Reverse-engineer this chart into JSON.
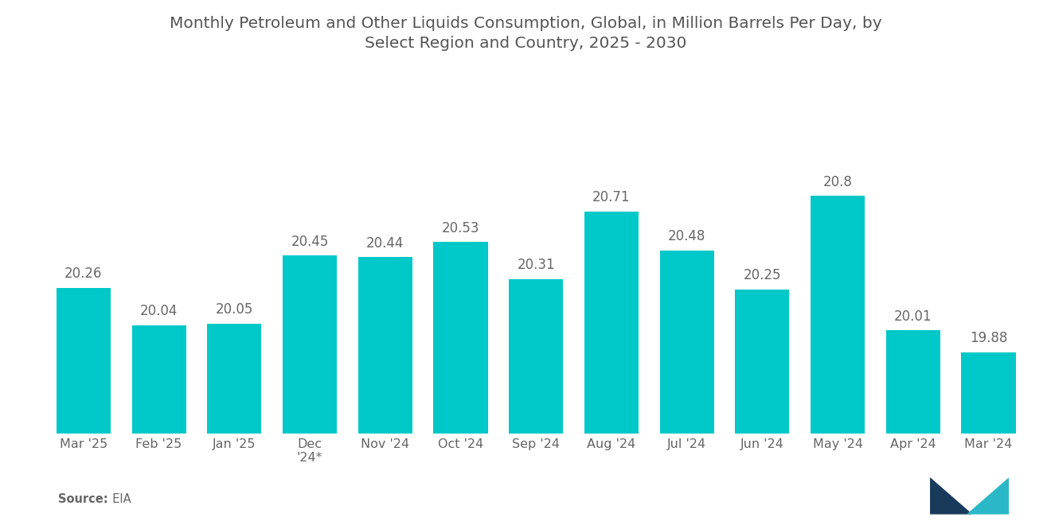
{
  "title_line1": "Monthly Petroleum and Other Liquids Consumption, Global, in Million Barrels Per Day, by",
  "title_line2": "Select Region and Country, 2025 - 2030",
  "categories": [
    "Mar '25",
    "Feb '25",
    "Jan '25",
    "Dec\n'24*",
    "Nov '24",
    "Oct '24",
    "Sep '24",
    "Aug '24",
    "Jul '24",
    "Jun '24",
    "May '24",
    "Apr '24",
    "Mar '24"
  ],
  "values": [
    20.26,
    20.04,
    20.05,
    20.45,
    20.44,
    20.53,
    20.31,
    20.71,
    20.48,
    20.25,
    20.8,
    20.01,
    19.88
  ],
  "bar_color": "#00C8C8",
  "background_color": "#ffffff",
  "title_color": "#555555",
  "label_color": "#666666",
  "tick_color": "#666666",
  "source_label": "Source:",
  "source_value": "  EIA",
  "ymin": 19.4,
  "ymax": 21.3,
  "title_fontsize": 14.5,
  "label_fontsize": 12,
  "tick_fontsize": 11.5,
  "source_fontsize": 10.5,
  "navy": "#1a3a5c",
  "teal_logo": "#2ab8c8"
}
